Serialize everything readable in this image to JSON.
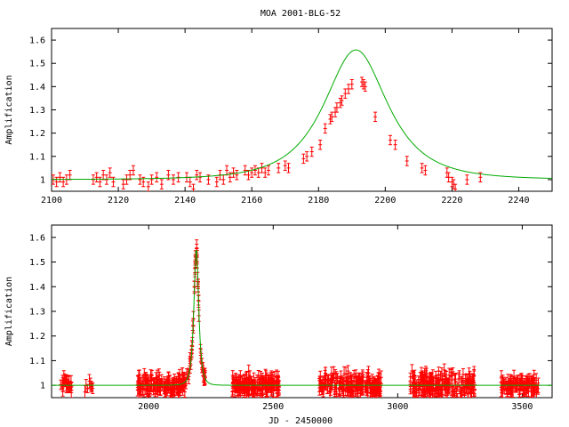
{
  "title": "MOA 2001-BLG-52",
  "colors": {
    "data": "#ff0000",
    "model": "#00aa00",
    "frame": "#000000"
  },
  "chart_data": [
    {
      "type": "scatter",
      "title": "MOA 2001-BLG-52",
      "xlabel": "",
      "ylabel": "Amplification",
      "xlim": [
        2100,
        2250
      ],
      "ylim": [
        0.95,
        1.65
      ],
      "xticks": [
        2100,
        2120,
        2140,
        2160,
        2180,
        2200,
        2220,
        2240
      ],
      "yticks": [
        1,
        1.1,
        1.2,
        1.3,
        1.4,
        1.5,
        1.6
      ],
      "grid": false,
      "error_bars": true,
      "model": {
        "t0": 2191.2,
        "u0": 0.78,
        "tE": 14.5
      },
      "points": [
        [
          2100.5,
          1.0,
          0.02
        ],
        [
          2101.5,
          0.99,
          0.02
        ],
        [
          2102.5,
          1.01,
          0.02
        ],
        [
          2103.5,
          0.99,
          0.02
        ],
        [
          2104.5,
          1.0,
          0.02
        ],
        [
          2105.5,
          1.02,
          0.02
        ],
        [
          2112.5,
          1.0,
          0.02
        ],
        [
          2113.5,
          1.01,
          0.02
        ],
        [
          2114.5,
          0.99,
          0.02
        ],
        [
          2115.5,
          1.02,
          0.02
        ],
        [
          2116.5,
          1.0,
          0.02
        ],
        [
          2117.5,
          1.03,
          0.02
        ],
        [
          2118.5,
          0.99,
          0.02
        ],
        [
          2121.5,
          0.98,
          0.02
        ],
        [
          2122.5,
          1.0,
          0.02
        ],
        [
          2123.5,
          1.02,
          0.02
        ],
        [
          2124.5,
          1.04,
          0.02
        ],
        [
          2126.5,
          1.0,
          0.02
        ],
        [
          2127.5,
          0.99,
          0.02
        ],
        [
          2129.0,
          0.97,
          0.02
        ],
        [
          2130.0,
          1.0,
          0.02
        ],
        [
          2131.5,
          1.01,
          0.02
        ],
        [
          2133.0,
          0.98,
          0.02
        ],
        [
          2135.0,
          1.02,
          0.02
        ],
        [
          2136.5,
          1.0,
          0.02
        ],
        [
          2138.0,
          1.01,
          0.02
        ],
        [
          2140.5,
          1.01,
          0.02
        ],
        [
          2141.5,
          0.99,
          0.02
        ],
        [
          2142.5,
          0.96,
          0.02
        ],
        [
          2143.5,
          1.02,
          0.02
        ],
        [
          2144.5,
          1.01,
          0.02
        ],
        [
          2147.0,
          1.0,
          0.02
        ],
        [
          2149.5,
          0.99,
          0.02
        ],
        [
          2150.5,
          1.02,
          0.02
        ],
        [
          2151.5,
          1.0,
          0.02
        ],
        [
          2152.5,
          1.04,
          0.02
        ],
        [
          2153.5,
          1.01,
          0.02
        ],
        [
          2154.5,
          1.03,
          0.02
        ],
        [
          2155.5,
          1.02,
          0.02
        ],
        [
          2158.0,
          1.04,
          0.02
        ],
        [
          2159.0,
          1.02,
          0.02
        ],
        [
          2160.0,
          1.03,
          0.02
        ],
        [
          2161.0,
          1.04,
          0.02
        ],
        [
          2162.0,
          1.03,
          0.02
        ],
        [
          2163.0,
          1.05,
          0.02
        ],
        [
          2164.0,
          1.03,
          0.02
        ],
        [
          2165.0,
          1.04,
          0.02
        ],
        [
          2168.0,
          1.05,
          0.02
        ],
        [
          2170.0,
          1.06,
          0.02
        ],
        [
          2171.0,
          1.05,
          0.02
        ],
        [
          2175.5,
          1.09,
          0.02
        ],
        [
          2176.5,
          1.1,
          0.02
        ],
        [
          2178.0,
          1.12,
          0.02
        ],
        [
          2180.5,
          1.15,
          0.02
        ],
        [
          2182.0,
          1.22,
          0.02
        ],
        [
          2183.5,
          1.26,
          0.02
        ],
        [
          2184.0,
          1.27,
          0.02
        ],
        [
          2185.0,
          1.29,
          0.02
        ],
        [
          2185.5,
          1.31,
          0.02
        ],
        [
          2186.5,
          1.33,
          0.02
        ],
        [
          2187.0,
          1.34,
          0.02
        ],
        [
          2188.0,
          1.37,
          0.02
        ],
        [
          2189.0,
          1.39,
          0.02
        ],
        [
          2190.0,
          1.41,
          0.02
        ],
        [
          2193.0,
          1.42,
          0.02
        ],
        [
          2193.5,
          1.41,
          0.02
        ],
        [
          2194.0,
          1.4,
          0.02
        ],
        [
          2197.0,
          1.27,
          0.02
        ],
        [
          2201.5,
          1.17,
          0.02
        ],
        [
          2203.0,
          1.15,
          0.02
        ],
        [
          2206.5,
          1.08,
          0.02
        ],
        [
          2211.0,
          1.05,
          0.02
        ],
        [
          2212.0,
          1.04,
          0.02
        ],
        [
          2218.5,
          1.03,
          0.02
        ],
        [
          2219.0,
          1.01,
          0.02
        ],
        [
          2220.0,
          0.99,
          0.02
        ],
        [
          2220.5,
          0.98,
          0.02
        ],
        [
          2221.0,
          0.96,
          0.02
        ],
        [
          2224.5,
          1.0,
          0.02
        ],
        [
          2228.5,
          1.01,
          0.02
        ]
      ]
    },
    {
      "type": "scatter",
      "title": "",
      "xlabel": "JD - 2450000",
      "ylabel": "Amplification",
      "xlim": [
        1610,
        3620
      ],
      "ylim": [
        0.95,
        1.65
      ],
      "xticks": [
        2000,
        2500,
        3000,
        3500
      ],
      "yticks": [
        1,
        1.1,
        1.2,
        1.3,
        1.4,
        1.5,
        1.6
      ],
      "grid": false,
      "error_bars": true,
      "model": {
        "t0": 2191.2,
        "u0": 0.78,
        "tE": 14.5
      },
      "seasons": [
        {
          "start": 1640,
          "end": 1700,
          "n": 26,
          "scatter": 0.022
        },
        {
          "start": 1740,
          "end": 1780,
          "n": 8,
          "scatter": 0.015
        },
        {
          "start": 1955,
          "end": 2140,
          "n": 150,
          "scatter": 0.025
        },
        {
          "start": 2140,
          "end": 2230,
          "n": 60,
          "scatter": 0.02
        },
        {
          "start": 2335,
          "end": 2525,
          "n": 170,
          "scatter": 0.028
        },
        {
          "start": 2685,
          "end": 2935,
          "n": 200,
          "scatter": 0.028
        },
        {
          "start": 3050,
          "end": 3310,
          "n": 210,
          "scatter": 0.03
        },
        {
          "start": 3415,
          "end": 3565,
          "n": 110,
          "scatter": 0.022
        }
      ]
    }
  ]
}
